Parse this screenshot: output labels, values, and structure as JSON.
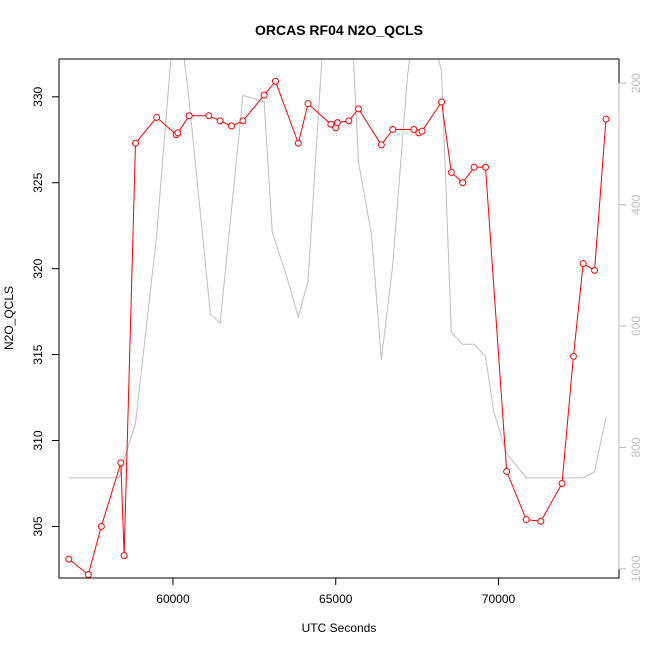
{
  "chart_data": {
    "type": "line",
    "title": "ORCAS RF04 N2O_QCLS",
    "xlabel": "UTC Seconds",
    "ylabel": "N2O_QCLS",
    "xlim": [
      56500,
      73700
    ],
    "ylim": [
      302,
      332.2
    ],
    "y2lim": [
      1015,
      160
    ],
    "x_ticks": [
      60000,
      65000,
      70000
    ],
    "x_tick_labels": [
      "60000",
      "65000",
      "70000"
    ],
    "y_ticks": [
      305,
      310,
      315,
      320,
      325,
      330
    ],
    "y_tick_labels": [
      "305",
      "310",
      "315",
      "320",
      "325",
      "330"
    ],
    "y2_ticks": [
      200,
      400,
      600,
      800,
      1000
    ],
    "y2_tick_labels": [
      "200",
      "400",
      "600",
      "800",
      "1000"
    ],
    "grid": false,
    "series": [
      {
        "axis": "left",
        "color": "#ff0000",
        "marker": "open-circle",
        "x": [
          56800,
          57400,
          57800,
          58400,
          58500,
          58850,
          59500,
          60100,
          60150,
          60500,
          61100,
          61450,
          61800,
          62150,
          62800,
          63150,
          63850,
          64150,
          64850,
          65000,
          65050,
          65400,
          65700,
          66400,
          66750,
          67400,
          67550,
          67650,
          68250,
          68550,
          68900,
          69250,
          69600,
          70250,
          70850,
          71300,
          71950,
          72300,
          72600,
          72950,
          73300
        ],
        "values": [
          303.1,
          302.2,
          305.0,
          308.7,
          303.3,
          327.3,
          328.8,
          327.8,
          327.9,
          328.9,
          328.9,
          328.6,
          328.3,
          328.6,
          330.1,
          330.9,
          327.3,
          329.6,
          328.4,
          328.2,
          328.5,
          328.6,
          329.3,
          327.2,
          328.1,
          328.1,
          327.9,
          328.0,
          329.7,
          325.6,
          325.0,
          325.9,
          325.9,
          308.2,
          305.4,
          305.3,
          307.5,
          314.9,
          320.3,
          319.9,
          328.7
        ]
      },
      {
        "axis": "right",
        "color": "#bebebe",
        "marker": "none",
        "x": [
          56800,
          58350,
          58500,
          58850,
          59500,
          60100,
          60500,
          61150,
          61450,
          62150,
          62800,
          63050,
          63500,
          63850,
          64150,
          64700,
          65000,
          65450,
          65700,
          66100,
          66400,
          66750,
          67200,
          67500,
          67650,
          68250,
          68550,
          68900,
          69250,
          69600,
          69850,
          70250,
          70850,
          71300,
          71950,
          72300,
          72600,
          72950,
          73300
        ],
        "values": [
          850,
          850,
          820,
          760,
          450,
          50,
          230,
          580,
          595,
          220,
          230,
          445,
          520,
          585,
          525,
          50,
          50,
          60,
          330,
          450,
          655,
          500,
          190,
          60,
          60,
          180,
          610,
          630,
          630,
          650,
          740,
          810,
          850,
          850,
          850,
          850,
          850,
          840,
          750
        ]
      }
    ]
  }
}
